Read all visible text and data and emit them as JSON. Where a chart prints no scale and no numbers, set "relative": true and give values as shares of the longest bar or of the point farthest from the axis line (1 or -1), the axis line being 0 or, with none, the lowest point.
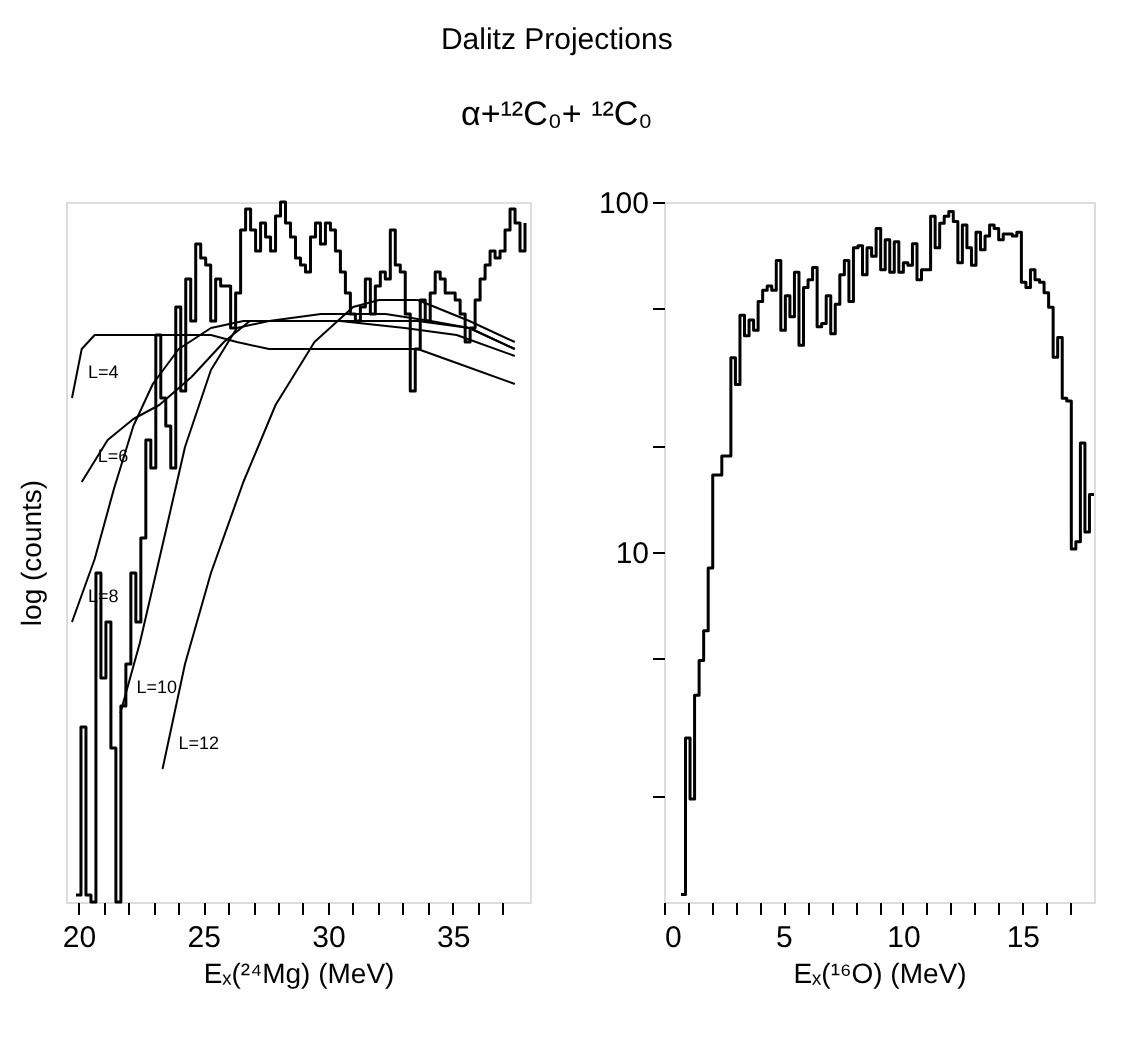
{
  "chart_data": [
    {
      "type": "line",
      "title": "Dalitz Projections",
      "subtitle": "α+¹²C₀+ ¹²C₀",
      "xlabel": "Eₓ(²⁴Mg) (MeV)",
      "ylabel": "log (counts)",
      "relative": true,
      "tick_labels": "x",
      "legend": false,
      "grid": false,
      "xlim": [
        19.5,
        38.1
      ],
      "xticks": [
        20,
        {
          "value": 21,
          "label": null
        },
        {
          "value": 22,
          "label": null
        },
        {
          "value": 23,
          "label": null
        },
        {
          "value": 24,
          "label": null
        },
        25,
        {
          "value": 26,
          "label": null
        },
        {
          "value": 27,
          "label": null
        },
        {
          "value": 28,
          "label": null
        },
        {
          "value": 29,
          "label": null
        },
        30,
        {
          "value": 31,
          "label": null
        },
        {
          "value": 32,
          "label": null
        },
        {
          "value": 33,
          "label": null
        },
        {
          "value": 34,
          "label": null
        },
        35,
        {
          "value": 36,
          "label": null
        },
        {
          "value": 37,
          "label": null
        }
      ],
      "series": [
        {
          "type": "step",
          "color": "#000000",
          "x": [
            19.9,
            20.1,
            20.3,
            20.5,
            20.7,
            20.9,
            21.1,
            21.3,
            21.5,
            21.7,
            21.9,
            22.1,
            22.3,
            22.5,
            22.7,
            22.9,
            23.1,
            23.3,
            23.5,
            23.7,
            23.9,
            24.1,
            24.3,
            24.5,
            24.7,
            24.9,
            25.1,
            25.3,
            25.5,
            25.7,
            25.9,
            26.1,
            26.3,
            26.5,
            26.7,
            26.9,
            27.1,
            27.3,
            27.5,
            27.7,
            27.9,
            28.1,
            28.3,
            28.5,
            28.7,
            28.9,
            29.1,
            29.3,
            29.5,
            29.7,
            29.9,
            30.1,
            30.3,
            30.5,
            30.7,
            30.9,
            31.1,
            31.3,
            31.5,
            31.7,
            31.9,
            32.1,
            32.3,
            32.5,
            32.7,
            32.9,
            33.1,
            33.3,
            33.5,
            33.7,
            33.9,
            34.1,
            34.3,
            34.5,
            34.7,
            34.9,
            35.1,
            35.3,
            35.5,
            35.7,
            35.9,
            36.1,
            36.3,
            36.5,
            36.7,
            36.9,
            37.1,
            37.3,
            37.5,
            37.7,
            37.9
          ],
          "values": [
            0.01,
            0.25,
            0.01,
            0,
            0.47,
            0.32,
            0.4,
            0.22,
            0,
            0.28,
            0.34,
            0.47,
            0.4,
            0.52,
            0.66,
            0.62,
            0.81,
            0.72,
            0.68,
            0.62,
            0.85,
            0.73,
            0.89,
            0.83,
            0.94,
            0.92,
            0.91,
            0.83,
            0.89,
            0.88,
            0.88,
            0.82,
            0.87,
            0.96,
            0.99,
            0.96,
            0.93,
            0.97,
            0.95,
            0.93,
            0.98,
            1.0,
            0.97,
            0.95,
            0.92,
            0.91,
            0.9,
            0.95,
            0.97,
            0.94,
            0.97,
            0.96,
            0.93,
            0.9,
            0.87,
            0.84,
            0.83,
            0.85,
            0.89,
            0.84,
            0.88,
            0.9,
            0.89,
            0.96,
            0.91,
            0.9,
            0.84,
            0.73,
            0.79,
            0.86,
            0.83,
            0.87,
            0.9,
            0.89,
            0.87,
            0.87,
            0.86,
            0.84,
            0.8,
            0.82,
            0.86,
            0.89,
            0.91,
            0.93,
            0.92,
            0.93,
            0.96,
            0.99,
            0.97,
            0.93,
            0.97
          ]
        },
        {
          "name": "L=4",
          "type": "line",
          "color": "#000000",
          "x": [
            19.74,
            20.13,
            20.65,
            21.42,
            23.24,
            25.31,
            26.35,
            27.64,
            29.72,
            32.31,
            33.6,
            35.16,
            37.49
          ],
          "values": [
            0.72,
            0.79,
            0.81,
            0.81,
            0.81,
            0.81,
            0.8,
            0.79,
            0.79,
            0.79,
            0.79,
            0.77,
            0.74
          ]
        },
        {
          "name": "L=6",
          "type": "line",
          "color": "#000000",
          "x": [
            20.13,
            21.17,
            22.2,
            23.24,
            24.53,
            25.83,
            26.87,
            28.42,
            30.49,
            33.08,
            35.16,
            37.49
          ],
          "values": [
            0.6,
            0.66,
            0.69,
            0.71,
            0.75,
            0.8,
            0.83,
            0.83,
            0.83,
            0.82,
            0.81,
            0.78
          ]
        },
        {
          "name": "L=8",
          "type": "line",
          "color": "#000000",
          "x": [
            19.74,
            20.65,
            21.42,
            22.2,
            22.98,
            24.02,
            25.31,
            26.61,
            28.42,
            31.01,
            33.6,
            35.67,
            37.49
          ],
          "values": [
            0.4,
            0.49,
            0.59,
            0.68,
            0.74,
            0.79,
            0.82,
            0.83,
            0.83,
            0.83,
            0.83,
            0.82,
            0.79
          ]
        },
        {
          "name": "L=10",
          "type": "line",
          "color": "#000000",
          "x": [
            21.68,
            22.46,
            23.5,
            24.27,
            25.31,
            26.35,
            27.64,
            29.72,
            32.31,
            34.12,
            35.67,
            37.49
          ],
          "values": [
            0.27,
            0.37,
            0.53,
            0.65,
            0.76,
            0.82,
            0.83,
            0.84,
            0.84,
            0.83,
            0.82,
            0.79
          ]
        },
        {
          "name": "L=12",
          "type": "line",
          "color": "#000000",
          "x": [
            23.37,
            24.27,
            25.31,
            26.61,
            27.9,
            29.46,
            31.01,
            32.05,
            33.6,
            35.67,
            37.49
          ],
          "values": [
            0.19,
            0.34,
            0.47,
            0.6,
            0.71,
            0.8,
            0.85,
            0.86,
            0.86,
            0.83,
            0.8
          ]
        }
      ]
    },
    {
      "type": "histogram",
      "xlabel": "Eₓ(¹⁶O) (MeV)",
      "log": true,
      "grid": false,
      "color": "#000000",
      "xlim": [
        0,
        18
      ],
      "ylim": [
        1,
        100
      ],
      "xticks": [
        0,
        {
          "value": 1,
          "label": null
        },
        {
          "value": 2,
          "label": null
        },
        {
          "value": 3,
          "label": null
        },
        {
          "value": 4,
          "label": null
        },
        5,
        {
          "value": 6,
          "label": null
        },
        {
          "value": 7,
          "label": null
        },
        {
          "value": 8,
          "label": null
        },
        {
          "value": 9,
          "label": null
        },
        10,
        {
          "value": 11,
          "label": null
        },
        {
          "value": 12,
          "label": null
        },
        {
          "value": 13,
          "label": null
        },
        {
          "value": 14,
          "label": null
        },
        15,
        {
          "value": 16,
          "label": null
        },
        {
          "value": 17,
          "label": null
        }
      ],
      "yticks": [
        {
          "value": 2,
          "label": null
        },
        {
          "value": 5,
          "label": null
        },
        10,
        {
          "value": 20,
          "label": null
        },
        {
          "value": 50,
          "label": null
        },
        100
      ],
      "bins": [
        0.71,
        0.9,
        1.09,
        1.28,
        1.47,
        1.66,
        1.85,
        2.04,
        2.23,
        2.42,
        2.61,
        2.8,
        2.99,
        3.18,
        3.37,
        3.56,
        3.75,
        3.94,
        4.13,
        4.32,
        4.51,
        4.7,
        4.89,
        5.08,
        5.27,
        5.46,
        5.65,
        5.84,
        6.03,
        6.22,
        6.41,
        6.6,
        6.79,
        6.98,
        7.17,
        7.36,
        7.55,
        7.74,
        7.93,
        8.12,
        8.31,
        8.5,
        8.69,
        8.88,
        9.07,
        9.26,
        9.45,
        9.64,
        9.83,
        10.02,
        10.21,
        10.4,
        10.59,
        10.78,
        10.97,
        11.16,
        11.35,
        11.54,
        11.73,
        11.92,
        12.11,
        12.3,
        12.49,
        12.68,
        12.87,
        13.06,
        13.25,
        13.44,
        13.63,
        13.82,
        14.01,
        14.2,
        14.39,
        14.58,
        14.77,
        14.96,
        15.15,
        15.34,
        15.53,
        15.72,
        15.91,
        16.1,
        16.29,
        16.48,
        16.67,
        16.86,
        17.05,
        17.24,
        17.43,
        17.62,
        17.81,
        18.0
      ],
      "values": [
        1.05,
        2.94,
        1.97,
        3.9,
        4.9,
        5.96,
        9.0,
        16.6,
        16.6,
        18.8,
        18.8,
        35.9,
        30.1,
        47.5,
        41.5,
        46,
        43,
        52,
        56,
        57.5,
        56,
        68,
        43,
        54,
        47,
        63,
        39,
        57,
        60,
        65,
        44,
        45,
        54,
        42,
        51,
        62,
        68,
        52,
        74,
        75,
        62,
        74,
        70,
        84,
        64,
        78,
        63,
        77,
        63,
        67,
        66,
        76,
        60,
        64,
        64,
        91,
        74,
        87,
        91,
        94,
        88,
        67,
        86,
        74,
        66,
        82,
        73,
        80,
        86,
        84,
        78,
        81,
        81,
        80,
        82,
        59,
        57,
        64,
        60,
        59,
        55,
        50,
        36,
        41,
        27.5,
        27,
        10.2,
        10.7,
        20.5,
        11.4,
        14.6
      ]
    }
  ]
}
